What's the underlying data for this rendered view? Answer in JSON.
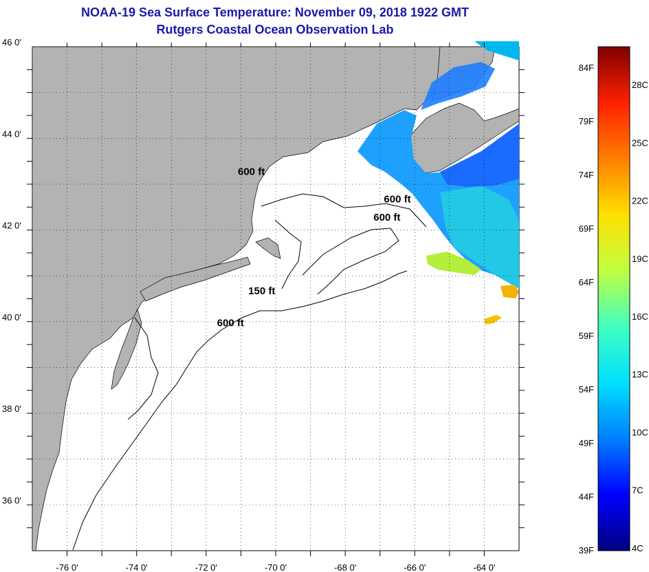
{
  "title": "NOAA-19 Sea Surface Temperature:  November 09, 2018 1922 GMT",
  "subtitle": "Rutgers Coastal Ocean Observation Lab",
  "map": {
    "lon_range": [
      -77,
      -63
    ],
    "lat_range": [
      35,
      46
    ],
    "lat_ticks": [
      {
        "value": 46,
        "label": "46 0'"
      },
      {
        "value": 44,
        "label": "44 0'"
      },
      {
        "value": 42,
        "label": "42 0'"
      },
      {
        "value": 40,
        "label": "40 0'"
      },
      {
        "value": 38,
        "label": "38 0'"
      },
      {
        "value": 36,
        "label": "36 0'"
      }
    ],
    "lon_ticks": [
      {
        "value": -76,
        "label": "-76 0'"
      },
      {
        "value": -74,
        "label": "-74 0'"
      },
      {
        "value": -72,
        "label": "-72 0'"
      },
      {
        "value": -70,
        "label": "-70 0'"
      },
      {
        "value": -68,
        "label": "-68 0'"
      },
      {
        "value": -66,
        "label": "-66 0'"
      },
      {
        "value": -64,
        "label": "-64 0'"
      }
    ],
    "contour_labels": [
      {
        "text": "600 ft",
        "lon": -70.7,
        "lat": 43.2
      },
      {
        "text": "600 ft",
        "lon": -66.5,
        "lat": 42.6
      },
      {
        "text": "600 ft",
        "lon": -66.8,
        "lat": 42.2
      },
      {
        "text": "150 ft",
        "lon": -70.4,
        "lat": 40.6
      },
      {
        "text": "600 ft",
        "lon": -71.3,
        "lat": 39.9
      }
    ],
    "land_color": "#b3b3b3",
    "water_color": "#ffffff"
  },
  "colorbar": {
    "f_labels": [
      "84F",
      "79F",
      "74F",
      "69F",
      "64F",
      "59F",
      "54F",
      "49F",
      "44F",
      "39F"
    ],
    "c_labels": [
      "28C",
      "25C",
      "22C",
      "19C",
      "16C",
      "13C",
      "10C",
      "7C",
      "4C"
    ],
    "min_f": 39,
    "max_f": 86,
    "colors": [
      "#00007f",
      "#0000ff",
      "#0080ff",
      "#00e0ff",
      "#40ffc0",
      "#c0ff40",
      "#ffe000",
      "#ff8000",
      "#ff2000",
      "#7f0000"
    ]
  }
}
